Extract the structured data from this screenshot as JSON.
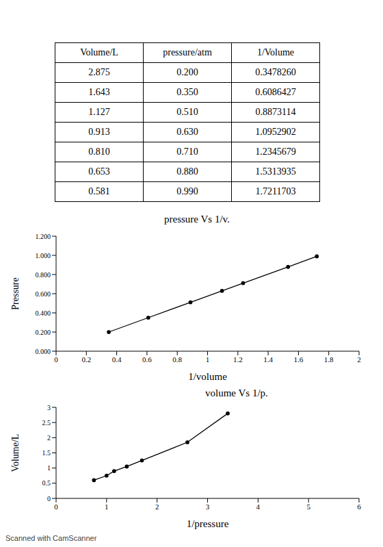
{
  "table": {
    "header": [
      "Volume/L",
      "pressure/atm",
      "1/Volume"
    ],
    "rows": [
      [
        "2.875",
        "0.200",
        "0.3478260"
      ],
      [
        "1.643",
        "0.350",
        "0.6086427"
      ],
      [
        "1.127",
        "0.510",
        "0.8873114"
      ],
      [
        "0.913",
        "0.630",
        "1.0952902"
      ],
      [
        "0.810",
        "0.710",
        "1.2345679"
      ],
      [
        "0.653",
        "0.880",
        "1.5313935"
      ],
      [
        "0.581",
        "0.990",
        "1.7211703"
      ]
    ]
  },
  "chart_data": [
    {
      "type": "line",
      "title": "pressure Vs 1/v.",
      "x_label": "1/volume",
      "y_label": "Pressure",
      "x": [
        0.347826,
        0.6086427,
        0.8873114,
        1.0952902,
        1.2345679,
        1.5313935,
        1.7211703
      ],
      "values": [
        0.2,
        0.35,
        0.51,
        0.63,
        0.71,
        0.88,
        0.99
      ],
      "xlim": [
        0,
        2
      ],
      "ylim": [
        0,
        1.2
      ],
      "xticks": [
        0,
        0.2,
        0.4,
        0.6,
        0.8,
        1,
        1.2,
        1.4,
        1.6,
        1.8,
        2
      ],
      "yticks": [
        {
          "value": 0,
          "label": "0.000"
        },
        {
          "value": 0.2,
          "label": "0.200"
        },
        {
          "value": 0.4,
          "label": "0.400"
        },
        {
          "value": 0.6,
          "label": "0.600"
        },
        {
          "value": 0.8,
          "label": "0.800"
        },
        {
          "value": 1,
          "label": "1.000"
        },
        {
          "value": 1.2,
          "label": "1.200"
        }
      ],
      "color": "#000000",
      "marker": "circle"
    },
    {
      "type": "line",
      "title": "volume Vs 1/p.",
      "x_label": "1/pressure",
      "y_label": "Volume/L",
      "x": [
        0.75,
        1.0,
        1.15,
        1.4,
        1.7,
        2.6,
        3.4
      ],
      "values": [
        0.6,
        0.75,
        0.9,
        1.05,
        1.25,
        1.85,
        2.8
      ],
      "xlim": [
        0,
        6
      ],
      "ylim": [
        0,
        3
      ],
      "xticks": [
        0,
        1,
        2,
        3,
        4,
        5,
        6
      ],
      "yticks": [
        0,
        0.5,
        1,
        1.5,
        2,
        2.5,
        3
      ],
      "color": "#000000",
      "marker": "circle"
    }
  ],
  "watermark": "Scanned with CamScanner"
}
